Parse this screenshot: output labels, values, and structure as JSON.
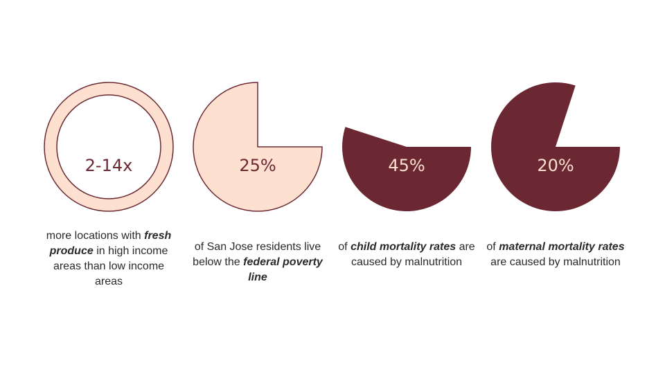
{
  "colors": {
    "dark": "#6b2832",
    "light": "#fde0cf"
  },
  "stats": [
    {
      "value": "2-14x",
      "kind": "ring",
      "caption": [
        {
          "t": "more locations with "
        },
        {
          "t": "fresh produce",
          "em": true
        },
        {
          "t": " in high income areas than low income areas"
        }
      ]
    },
    {
      "value": "25%",
      "kind": "pie",
      "percent": 25,
      "style": "light",
      "caption": [
        {
          "t": "of San Jose residents live below the "
        },
        {
          "t": "federal poverty line",
          "em": true
        }
      ]
    },
    {
      "value": "45%",
      "kind": "pie",
      "percent": 45,
      "style": "dark",
      "caption": [
        {
          "t": "of "
        },
        {
          "t": "child mortality rates",
          "em": true
        },
        {
          "t": " are caused by malnutrition"
        }
      ]
    },
    {
      "value": "20%",
      "kind": "pie",
      "percent": 20,
      "style": "dark",
      "caption": [
        {
          "t": "of "
        },
        {
          "t": "maternal mortality rates",
          "em": true
        },
        {
          "t": " are caused by malnutrition"
        }
      ]
    }
  ]
}
